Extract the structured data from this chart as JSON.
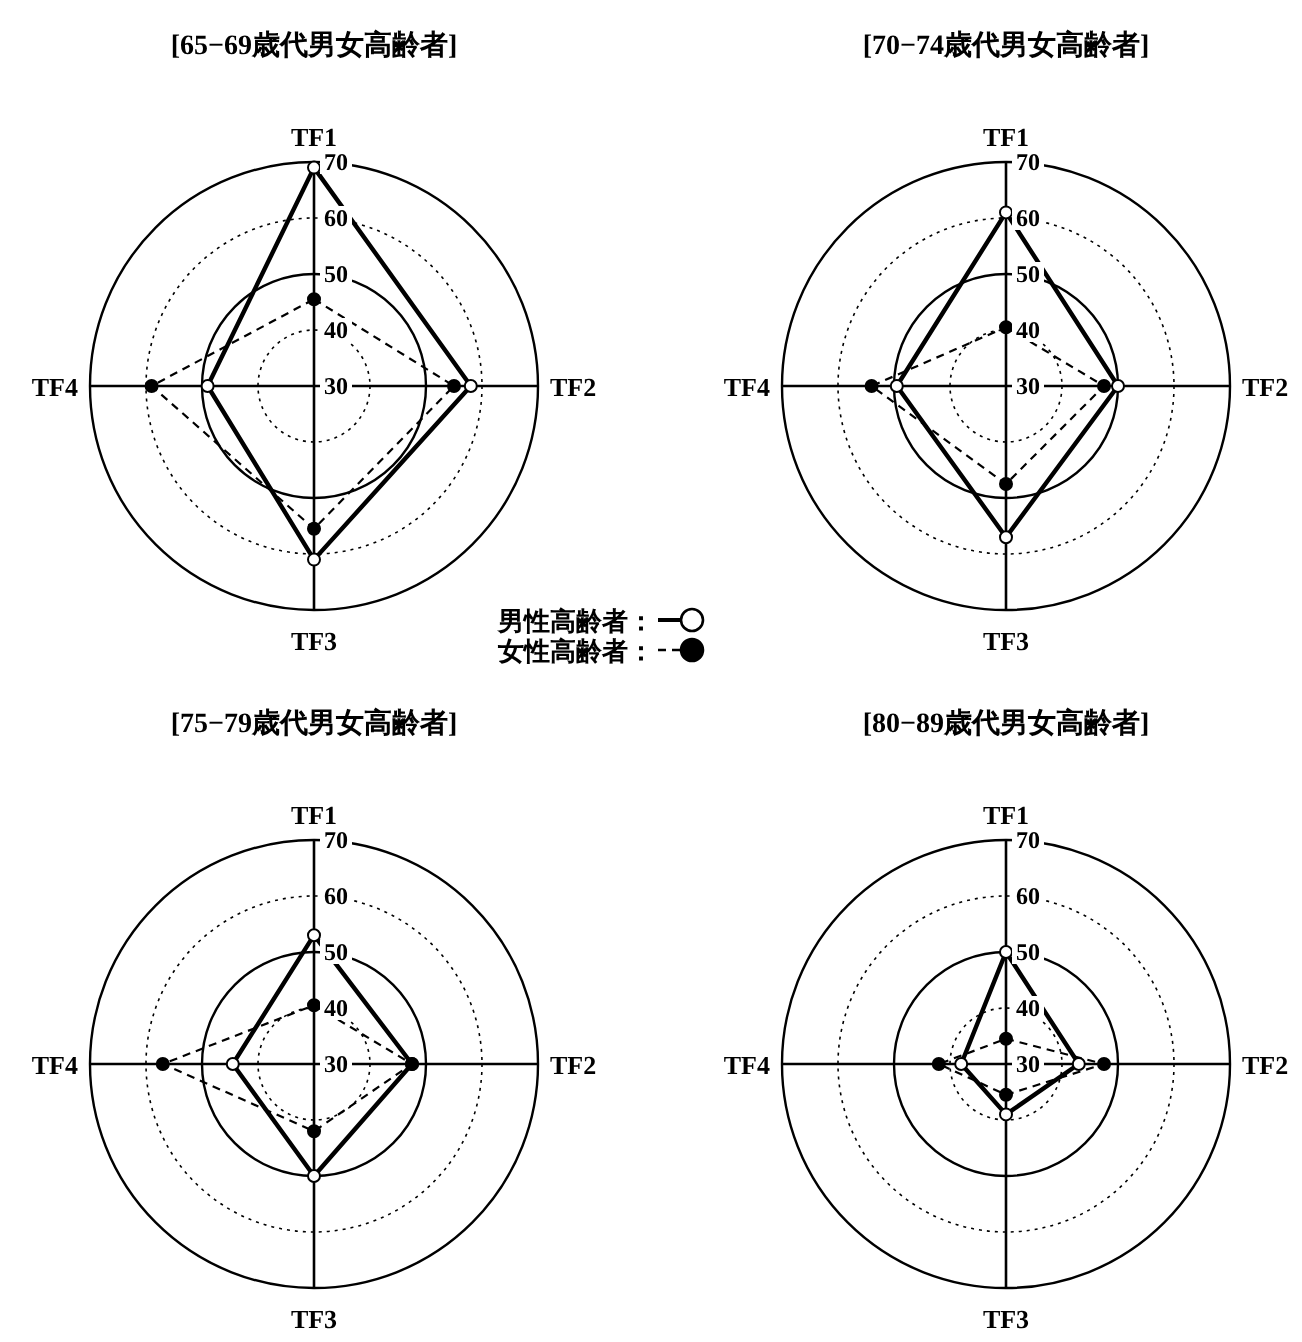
{
  "chart_data": [
    {
      "type": "radar",
      "title": "[65−69歳代男女高齢者]",
      "categories": [
        "TF1",
        "TF2",
        "TF3",
        "TF4"
      ],
      "ylim": [
        30,
        70
      ],
      "yticks": [
        30,
        40,
        50,
        60,
        70
      ],
      "grid": true,
      "legend": "bottom right",
      "marker": "circle",
      "series": [
        {
          "name": "男性高齢者：",
          "color": "#000000",
          "line_style": "solid",
          "values": [
            69,
            58,
            61,
            49
          ]
        },
        {
          "name": "女性高齢者：",
          "color": "#000000",
          "line_style": "dashed",
          "values": [
            45.5,
            55,
            55.5,
            59
          ]
        }
      ]
    },
    {
      "type": "radar",
      "title": "[70−74歳代男女高齢者]",
      "categories": [
        "TF1",
        "TF2",
        "TF3",
        "TF4"
      ],
      "ylim": [
        30,
        70
      ],
      "yticks": [
        30,
        40,
        50,
        60,
        70
      ],
      "grid": true,
      "marker": "circle",
      "series": [
        {
          "color": "#000000",
          "line_style": "solid",
          "values": [
            61,
            50,
            57,
            49.5
          ]
        },
        {
          "color": "#000000",
          "line_style": "dashed",
          "values": [
            40.5,
            47.5,
            47.5,
            54
          ]
        }
      ]
    },
    {
      "type": "radar",
      "title": "[75−79歳代男女高齢者]",
      "categories": [
        "TF1",
        "TF2",
        "TF3",
        "TF4"
      ],
      "ylim": [
        30,
        70
      ],
      "yticks": [
        30,
        40,
        50,
        60,
        70
      ],
      "grid": true,
      "marker": "circle",
      "series": [
        {
          "color": "#000000",
          "line_style": "solid",
          "values": [
            53,
            47.5,
            50,
            44.5
          ]
        },
        {
          "color": "#000000",
          "line_style": "dashed",
          "values": [
            40.5,
            47.5,
            42,
            57
          ]
        }
      ]
    },
    {
      "type": "radar",
      "title": "[80−89歳代男女高齢者]",
      "categories": [
        "TF1",
        "TF2",
        "TF3",
        "TF4"
      ],
      "ylim": [
        30,
        70
      ],
      "yticks": [
        30,
        40,
        50,
        60,
        70
      ],
      "grid": true,
      "marker": "circle",
      "series": [
        {
          "color": "#000000",
          "line_style": "solid",
          "values": [
            50,
            43,
            39,
            38
          ]
        },
        {
          "color": "#000000",
          "line_style": "dashed",
          "values": [
            34.5,
            47.5,
            35.5,
            42
          ]
        }
      ]
    }
  ]
}
